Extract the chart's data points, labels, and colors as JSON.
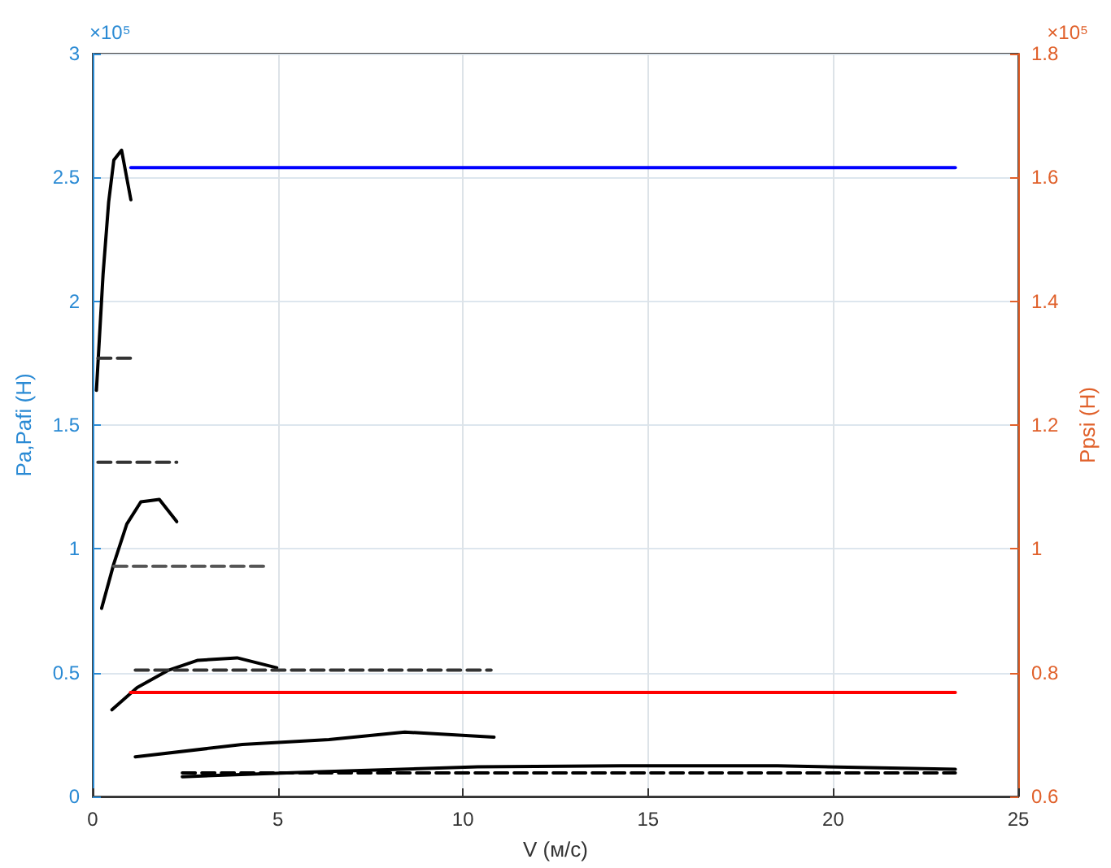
{
  "chart_data": {
    "type": "line",
    "xlabel": "V (м/с)",
    "ylabel": "Pa,Pafi (H)",
    "y2label": "Ppsi (H)",
    "xlim": [
      0,
      25
    ],
    "xticks": [
      0,
      5,
      10,
      15,
      20,
      25
    ],
    "ylim": [
      0,
      3
    ],
    "yticks": [
      0,
      0.5,
      1,
      1.5,
      2,
      2.5,
      3
    ],
    "y2lim": [
      0.6,
      1.8
    ],
    "y2ticks": [
      0.6,
      0.8,
      1,
      1.2,
      1.4,
      1.6,
      1.8
    ],
    "grid": true,
    "marker": "none",
    "annotations": [
      "×10⁵",
      "×10⁵"
    ],
    "series": [
      {
        "color": "#000000",
        "x": [
          0.1,
          0.28,
          0.43,
          0.57,
          0.78,
          1.03
        ],
        "values": [
          1.64,
          2.11,
          2.4,
          2.57,
          2.61,
          2.41
        ]
      },
      {
        "color": "#0000ff",
        "x": [
          1.03,
          23.3
        ],
        "values": [
          2.54,
          2.54
        ]
      },
      {
        "color": "#333333",
        "line_style": "dashed",
        "x": [
          0.14,
          1.03
        ],
        "values": [
          1.77,
          1.77
        ]
      },
      {
        "color": "#333333",
        "line_style": "dashed",
        "x": [
          0.14,
          2.27
        ],
        "values": [
          1.35,
          1.35
        ]
      },
      {
        "color": "#000000",
        "x": [
          0.24,
          0.57,
          0.92,
          1.3,
          1.8,
          2.27
        ],
        "values": [
          0.76,
          0.94,
          1.1,
          1.19,
          1.2,
          1.11
        ]
      },
      {
        "color": "#555555",
        "line_style": "dashed",
        "x": [
          0.57,
          4.75
        ],
        "values": [
          0.93,
          0.93
        ]
      },
      {
        "color": "#000000",
        "x": [
          0.52,
          1.2,
          2.05,
          2.84,
          3.9,
          4.97
        ],
        "values": [
          0.35,
          0.44,
          0.51,
          0.55,
          0.56,
          0.52
        ]
      },
      {
        "color": "#333333",
        "line_style": "dashed",
        "x": [
          1.15,
          10.76
        ],
        "values": [
          0.51,
          0.51
        ]
      },
      {
        "color": "#ff0000",
        "x": [
          1.02,
          23.3
        ],
        "values": [
          0.42,
          0.42
        ]
      },
      {
        "color": "#000000",
        "x": [
          1.15,
          4.04,
          6.38,
          8.43,
          10.84
        ],
        "values": [
          0.16,
          0.21,
          0.23,
          0.26,
          0.24
        ]
      },
      {
        "color": "#000000",
        "x": [
          2.42,
          6.17,
          10.4,
          14.7,
          18.5,
          23.3
        ],
        "values": [
          0.08,
          0.1,
          0.12,
          0.124,
          0.124,
          0.11
        ]
      },
      {
        "color": "#000000",
        "line_style": "dashed",
        "x": [
          2.42,
          23.3
        ],
        "values": [
          0.095,
          0.095
        ]
      }
    ]
  }
}
